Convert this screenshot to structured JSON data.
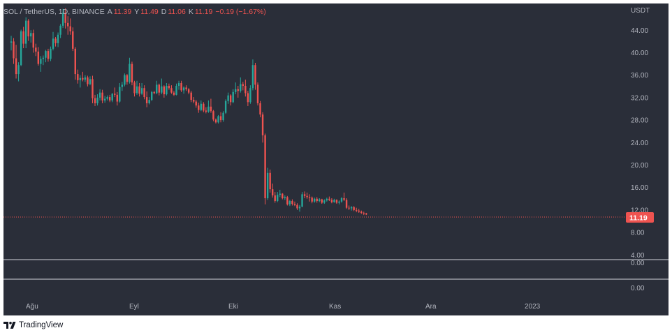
{
  "legend": {
    "symbol": "SOL / TetherUS, 1D, BINANCE",
    "o_label": "A",
    "open": "11.39",
    "h_label": "Y",
    "high": "11.49",
    "l_label": "D",
    "low": "11.06",
    "c_label": "K",
    "close": "11.19",
    "change": "−0.19 (−1.67%)"
  },
  "price_scale_unit": "USDT",
  "last_price_label": "11.19",
  "brand": "TradingView",
  "colors": {
    "up": "#26a69a",
    "down": "#ef5350",
    "background": "#2a2e39",
    "text": "#b2b5be"
  },
  "chart_data": [
    {
      "type": "candlestick",
      "yticks": [
        "44.00",
        "40.00",
        "36.00",
        "32.00",
        "28.00",
        "24.00",
        "20.00",
        "16.00",
        "12.00",
        "8.00",
        "4.00"
      ],
      "ylim": [
        2,
        48
      ],
      "xticks": [
        "Ağu",
        "Eyl",
        "Eki",
        "Kas",
        "Ara",
        "2023"
      ],
      "last_price": 11.19,
      "candles": [
        [
          41.8,
          43.0,
          40.4,
          42.0
        ],
        [
          42.0,
          42.6,
          38.0,
          39.0
        ],
        [
          39.0,
          41.4,
          35.4,
          36.2
        ],
        [
          36.2,
          38.3,
          34.9,
          37.8
        ],
        [
          37.8,
          44.1,
          37.6,
          43.8
        ],
        [
          43.8,
          44.6,
          40.8,
          41.6
        ],
        [
          41.6,
          46.3,
          40.8,
          45.7
        ],
        [
          45.7,
          46.0,
          42.1,
          42.9
        ],
        [
          42.9,
          44.0,
          41.8,
          43.5
        ],
        [
          43.5,
          44.1,
          40.0,
          40.9
        ],
        [
          40.9,
          41.6,
          39.4,
          40.2
        ],
        [
          40.2,
          41.0,
          37.7,
          38.0
        ],
        [
          38.0,
          39.4,
          36.6,
          38.9
        ],
        [
          38.9,
          39.5,
          37.8,
          39.1
        ],
        [
          39.1,
          40.5,
          38.3,
          40.3
        ],
        [
          40.3,
          40.7,
          38.4,
          38.9
        ],
        [
          38.9,
          41.1,
          38.5,
          40.7
        ],
        [
          40.7,
          43.7,
          40.4,
          42.5
        ],
        [
          42.5,
          42.8,
          41.1,
          41.7
        ],
        [
          41.7,
          43.6,
          41.0,
          43.2
        ],
        [
          43.2,
          45.1,
          42.6,
          44.8
        ],
        [
          44.8,
          47.8,
          44.4,
          47.1
        ],
        [
          47.1,
          47.9,
          44.3,
          45.3
        ],
        [
          45.3,
          46.5,
          43.2,
          44.7
        ],
        [
          44.7,
          46.1,
          43.2,
          43.8
        ],
        [
          43.8,
          44.5,
          40.3,
          40.7
        ],
        [
          40.7,
          41.0,
          35.2,
          36.2
        ],
        [
          36.2,
          37.0,
          34.5,
          35.1
        ],
        [
          35.1,
          36.0,
          33.8,
          35.5
        ],
        [
          35.5,
          36.6,
          34.9,
          35.2
        ],
        [
          35.2,
          36.0,
          34.8,
          35.6
        ],
        [
          35.6,
          35.9,
          34.0,
          34.4
        ],
        [
          34.4,
          35.8,
          34.2,
          35.3
        ],
        [
          35.3,
          35.9,
          31.0,
          31.9
        ],
        [
          31.9,
          32.5,
          30.5,
          31.0
        ],
        [
          31.0,
          32.6,
          30.6,
          32.0
        ],
        [
          32.0,
          33.5,
          31.5,
          32.9
        ],
        [
          32.9,
          33.4,
          31.0,
          31.5
        ],
        [
          31.5,
          32.3,
          31.1,
          31.8
        ],
        [
          31.8,
          32.4,
          31.5,
          32.1
        ],
        [
          32.1,
          32.5,
          31.2,
          31.5
        ],
        [
          31.5,
          32.8,
          31.2,
          32.7
        ],
        [
          32.7,
          33.8,
          32.1,
          32.5
        ],
        [
          32.5,
          33.0,
          30.6,
          31.3
        ],
        [
          31.3,
          34.6,
          31.1,
          33.9
        ],
        [
          33.9,
          34.8,
          33.2,
          34.3
        ],
        [
          34.3,
          36.3,
          34.0,
          36.0
        ],
        [
          36.0,
          36.2,
          34.3,
          34.8
        ],
        [
          34.8,
          39.1,
          34.5,
          38.0
        ],
        [
          38.0,
          38.4,
          34.2,
          34.7
        ],
        [
          34.7,
          35.0,
          32.2,
          32.8
        ],
        [
          32.8,
          35.0,
          32.5,
          34.0
        ],
        [
          34.0,
          34.6,
          32.2,
          32.7
        ],
        [
          32.7,
          34.6,
          32.5,
          33.7
        ],
        [
          33.7,
          34.2,
          31.7,
          32.1
        ],
        [
          32.1,
          33.1,
          30.3,
          31.0
        ],
        [
          31.0,
          32.1,
          30.8,
          31.6
        ],
        [
          31.6,
          33.2,
          31.4,
          33.0
        ],
        [
          33.0,
          33.2,
          32.6,
          32.8
        ],
        [
          32.8,
          35.0,
          32.6,
          34.3
        ],
        [
          34.3,
          34.5,
          32.4,
          32.9
        ],
        [
          32.9,
          35.4,
          32.6,
          34.0
        ],
        [
          34.0,
          34.2,
          32.0,
          32.6
        ],
        [
          32.6,
          34.6,
          32.4,
          34.1
        ],
        [
          34.1,
          34.5,
          33.4,
          33.7
        ],
        [
          33.7,
          34.2,
          32.7,
          32.9
        ],
        [
          32.9,
          33.2,
          32.3,
          32.5
        ],
        [
          32.5,
          34.5,
          32.4,
          34.1
        ],
        [
          34.1,
          35.0,
          33.4,
          34.6
        ],
        [
          34.6,
          35.0,
          33.0,
          33.3
        ],
        [
          33.3,
          34.0,
          32.7,
          33.8
        ],
        [
          33.8,
          34.2,
          33.2,
          33.5
        ],
        [
          33.5,
          33.7,
          32.6,
          32.9
        ],
        [
          32.9,
          33.2,
          31.2,
          31.6
        ],
        [
          31.6,
          32.1,
          31.0,
          31.3
        ],
        [
          31.3,
          31.6,
          30.2,
          30.6
        ],
        [
          30.6,
          31.1,
          29.3,
          29.8
        ],
        [
          29.8,
          31.5,
          29.6,
          30.9
        ],
        [
          30.9,
          31.2,
          29.4,
          29.7
        ],
        [
          29.7,
          30.3,
          29.2,
          29.5
        ],
        [
          29.5,
          31.5,
          29.3,
          30.4
        ],
        [
          30.4,
          31.8,
          29.3,
          29.6
        ],
        [
          29.6,
          29.8,
          27.8,
          28.1
        ],
        [
          28.1,
          28.3,
          27.4,
          27.6
        ],
        [
          27.6,
          28.9,
          27.4,
          28.7
        ],
        [
          28.7,
          29.4,
          27.6,
          28.0
        ],
        [
          28.0,
          29.6,
          27.7,
          29.3
        ],
        [
          29.3,
          31.7,
          29.1,
          31.4
        ],
        [
          31.4,
          32.9,
          30.9,
          32.4
        ],
        [
          32.4,
          32.6,
          30.6,
          31.2
        ],
        [
          31.2,
          33.5,
          31.0,
          33.0
        ],
        [
          33.0,
          34.7,
          32.6,
          33.5
        ],
        [
          33.5,
          34.1,
          32.0,
          33.2
        ],
        [
          33.2,
          35.6,
          32.9,
          34.4
        ],
        [
          34.4,
          34.8,
          33.3,
          34.1
        ],
        [
          34.1,
          35.2,
          32.2,
          32.8
        ],
        [
          32.8,
          33.2,
          30.5,
          31.2
        ],
        [
          31.2,
          34.2,
          30.9,
          33.7
        ],
        [
          33.7,
          38.8,
          33.3,
          37.8
        ],
        [
          37.8,
          38.2,
          33.4,
          34.3
        ],
        [
          34.3,
          34.7,
          30.6,
          31.0
        ],
        [
          31.0,
          31.4,
          28.5,
          29.0
        ],
        [
          29.0,
          29.4,
          24.0,
          25.3
        ],
        [
          25.3,
          25.6,
          13.0,
          14.1
        ],
        [
          14.1,
          19.5,
          13.8,
          18.6
        ],
        [
          18.6,
          19.2,
          15.1,
          15.7
        ],
        [
          15.7,
          16.7,
          14.2,
          14.6
        ],
        [
          14.6,
          15.2,
          13.3,
          13.6
        ],
        [
          13.6,
          15.2,
          13.4,
          14.7
        ],
        [
          14.7,
          15.6,
          14.3,
          14.9
        ],
        [
          14.9,
          15.0,
          13.9,
          14.1
        ],
        [
          14.1,
          14.6,
          13.8,
          14.3
        ],
        [
          14.3,
          14.5,
          12.8,
          13.0
        ],
        [
          13.0,
          13.8,
          12.7,
          13.6
        ],
        [
          13.6,
          13.9,
          12.8,
          13.1
        ],
        [
          13.1,
          13.5,
          12.7,
          12.9
        ],
        [
          12.9,
          13.2,
          12.0,
          12.3
        ],
        [
          12.3,
          12.9,
          11.7,
          12.6
        ],
        [
          12.6,
          15.2,
          12.5,
          14.8
        ],
        [
          14.8,
          15.3,
          14.1,
          14.5
        ],
        [
          14.5,
          15.1,
          14.0,
          14.3
        ],
        [
          14.3,
          14.8,
          13.5,
          14.2
        ],
        [
          14.2,
          14.4,
          13.2,
          13.5
        ],
        [
          13.5,
          14.2,
          13.3,
          14.0
        ],
        [
          14.0,
          14.3,
          13.3,
          13.6
        ],
        [
          13.6,
          14.1,
          13.4,
          13.9
        ],
        [
          13.9,
          14.0,
          13.1,
          13.3
        ],
        [
          13.3,
          13.9,
          13.1,
          13.7
        ],
        [
          13.7,
          14.2,
          13.5,
          14.0
        ],
        [
          14.0,
          14.4,
          13.6,
          13.8
        ],
        [
          13.8,
          14.1,
          13.2,
          13.4
        ],
        [
          13.4,
          14.0,
          13.3,
          13.8
        ],
        [
          13.8,
          13.9,
          13.1,
          13.3
        ],
        [
          13.3,
          13.7,
          13.0,
          13.5
        ],
        [
          13.5,
          14.3,
          13.3,
          14.1
        ],
        [
          14.1,
          15.1,
          13.6,
          13.8
        ],
        [
          13.8,
          14.1,
          12.2,
          12.4
        ],
        [
          12.4,
          12.8,
          12.0,
          12.3
        ],
        [
          12.3,
          12.7,
          11.9,
          12.5
        ],
        [
          12.5,
          12.7,
          11.8,
          12.0
        ],
        [
          12.0,
          12.4,
          11.6,
          11.9
        ],
        [
          11.9,
          12.2,
          11.5,
          11.7
        ],
        [
          11.7,
          11.9,
          11.3,
          11.5
        ],
        [
          11.5,
          11.7,
          11.1,
          11.4
        ],
        [
          11.4,
          11.5,
          11.1,
          11.2
        ]
      ]
    },
    {
      "type": "indicator-pane",
      "yticks": [
        "0.00"
      ],
      "note": "lower pane shows a horizontal line at 0.00"
    }
  ]
}
